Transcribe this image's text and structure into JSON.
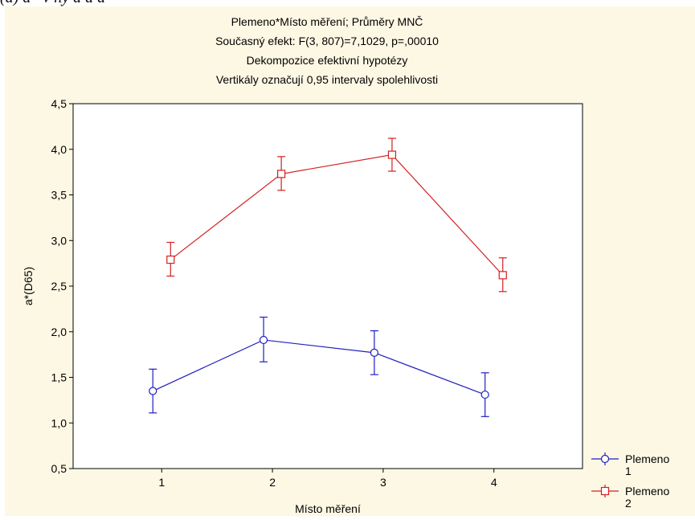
{
  "caption_fragment": "(a)              a* v hy                        a       a           a",
  "chart_data": {
    "type": "line",
    "title_lines": [
      "Plemeno*Místo měření; Průměry MNČ",
      "Současný efekt: F(3, 807)=7,1029, p=,00010",
      "Dekompozice efektivní hypotézy",
      "Vertikály označují 0,95 intervaly spolehlivosti"
    ],
    "xlabel": "Místo měření",
    "ylabel": "a*(D65)",
    "categories": [
      "1",
      "2",
      "3",
      "4"
    ],
    "x_range": [
      0.2,
      4.8
    ],
    "ylim": [
      0.5,
      4.5
    ],
    "y_ticks": [
      "0,5",
      "1,0",
      "1,5",
      "2,0",
      "2,5",
      "3,0",
      "3,5",
      "4,0",
      "4,5"
    ],
    "grid": false,
    "legend_position": "bottom-right outside",
    "series": [
      {
        "name_line1": "Plemeno",
        "name_line2": "1",
        "color": "#1f1fbf",
        "marker": "circle",
        "x_offset": -0.08,
        "values": [
          1.35,
          1.91,
          1.77,
          1.31
        ],
        "ci_low": [
          1.11,
          1.67,
          1.53,
          1.07
        ],
        "ci_high": [
          1.59,
          2.16,
          2.01,
          1.55
        ]
      },
      {
        "name_line1": "Plemeno",
        "name_line2": "2",
        "color": "#d42020",
        "marker": "square",
        "x_offset": 0.08,
        "values": [
          2.79,
          3.73,
          3.94,
          2.62
        ],
        "ci_low": [
          2.61,
          3.55,
          3.76,
          2.44
        ],
        "ci_high": [
          2.98,
          3.92,
          4.12,
          2.81
        ]
      }
    ]
  }
}
